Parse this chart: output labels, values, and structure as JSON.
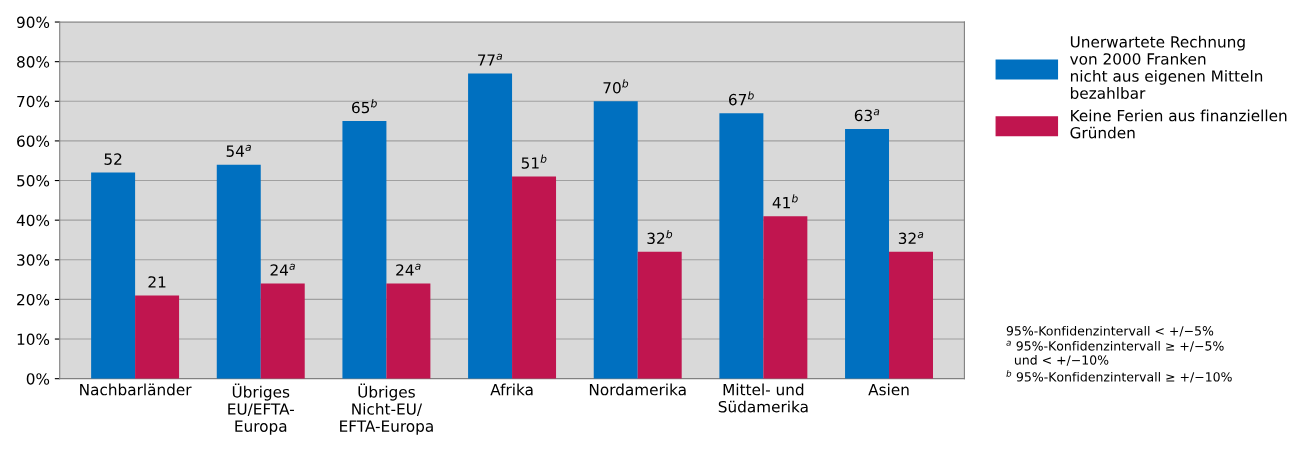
{
  "chart_data": {
    "type": "bar",
    "categories": [
      "Nachbarländer",
      "Übriges\nEU/EFTA-\nEuropa",
      "Übriges\nNicht-EU/\nEFTA-Europa",
      "Afrika",
      "Nordamerika",
      "Mittel- und\nSüdamerika",
      "Asien"
    ],
    "series": [
      {
        "name": "Unerwartete Rechnung\nvon 2000 Franken\nnicht aus eigenen Mitteln\nbezahlbar",
        "color": "#0070c0",
        "values": [
          52,
          54,
          65,
          77,
          70,
          67,
          63
        ],
        "value_labels": [
          "52",
          "54$^{a}$",
          "65$^{b}$",
          "77$^{a}$",
          "70$^{b}$",
          "67$^{b}$",
          "63$^{a}$"
        ]
      },
      {
        "name": "Keine Ferien aus finanziellen\nGründen",
        "color": "#c0154f",
        "values": [
          21,
          24,
          24,
          51,
          32,
          41,
          32
        ],
        "value_labels": [
          "21",
          "24$^{a}$",
          "24$^{a}$",
          "51$^{b}$",
          "32$^{b}$",
          "41$^{b}$",
          "32$^{a}$"
        ]
      }
    ],
    "ylim": [
      0,
      90
    ],
    "yticks": [
      {
        "value": 0,
        "label": "0%"
      },
      {
        "value": 10,
        "label": "10%"
      },
      {
        "value": 20,
        "label": "20%"
      },
      {
        "value": 30,
        "label": "30%"
      },
      {
        "value": 40,
        "label": "40%"
      },
      {
        "value": 50,
        "label": "50%"
      },
      {
        "value": 60,
        "label": "60%"
      },
      {
        "value": 70,
        "label": "70%"
      },
      {
        "value": 80,
        "label": "80%"
      },
      {
        "value": 90,
        "label": "90%"
      }
    ],
    "grid": "y",
    "legend": "right",
    "annotations": [
      "95%-Konfidenzintervall < +/−5%",
      "$^{a}$ 95%-Konfidenzintervall ≥ +/−5%\n  und < +/−10%",
      "$^{b}$ 95%-Konfidenzintervall ≥ +/−10%"
    ]
  }
}
